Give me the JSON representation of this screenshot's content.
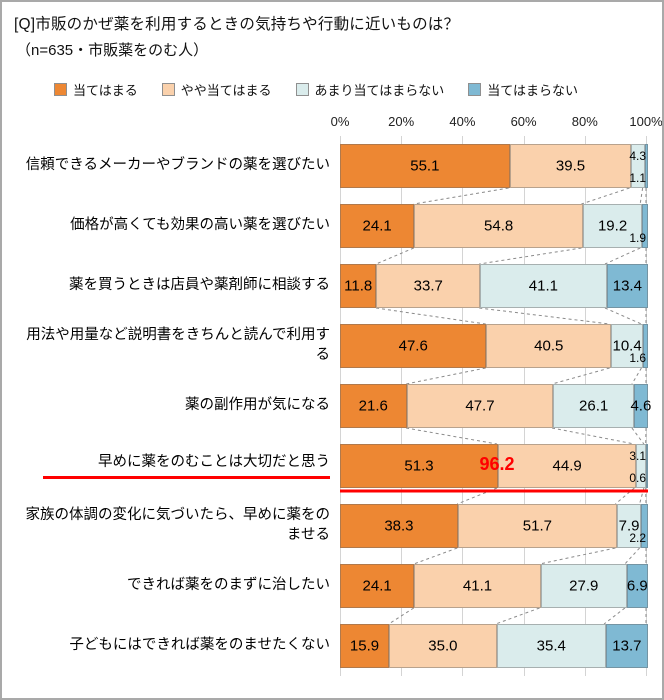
{
  "header": {
    "title": "[Q]市販のかぜ薬を利用するときの気持ちや行動に近いものは？",
    "subtitle": "（n=635・市販薬をのむ人）"
  },
  "chart_data": {
    "type": "bar",
    "stacked": true,
    "orientation": "horizontal",
    "unit": "%",
    "legend_position": "top",
    "x_axis": {
      "ticks": [
        "0%",
        "20%",
        "40%",
        "60%",
        "80%",
        "100%"
      ],
      "min": 0,
      "max": 100,
      "grid": true
    },
    "series": [
      {
        "name": "当てはまる",
        "color": "#ED8733"
      },
      {
        "name": "やや当てはまる",
        "color": "#FAD1AC"
      },
      {
        "name": "あまり当てはまらない",
        "color": "#DAECEC"
      },
      {
        "name": "当てはまらない",
        "color": "#7FB9D3"
      }
    ],
    "rows": [
      {
        "label": "信頼できるメーカーやブランドの薬を選びたい",
        "values": [
          55.1,
          39.5,
          4.3,
          1.1
        ]
      },
      {
        "label": "価格が高くても効果の高い薬を選びたい",
        "values": [
          24.1,
          54.8,
          19.2,
          1.9
        ]
      },
      {
        "label": "薬を買うときは店員や薬剤師に相談する",
        "values": [
          11.8,
          33.7,
          41.1,
          13.4
        ]
      },
      {
        "label": "用法や用量など説明書をきちんと読んで利用する",
        "values": [
          47.6,
          40.5,
          10.4,
          1.6
        ]
      },
      {
        "label": "薬の副作用が気になる",
        "values": [
          21.6,
          47.7,
          26.1,
          4.6
        ]
      },
      {
        "label": "早めに薬をのむことは大切だと思う",
        "values": [
          51.3,
          44.9,
          3.1,
          0.6
        ]
      },
      {
        "label": "家族の体調の変化に気づいたら、早めに薬をのませる",
        "values": [
          38.3,
          51.7,
          7.9,
          2.2
        ]
      },
      {
        "label": "できれば薬をのまずに治したい",
        "values": [
          24.1,
          41.1,
          27.9,
          6.9
        ]
      },
      {
        "label": "子どもにはできれば薬をのませたくない",
        "values": [
          15.9,
          35.0,
          35.4,
          13.7
        ]
      }
    ],
    "highlight": {
      "row_index": 5,
      "total_label": "96.2",
      "color": "#FF0000"
    }
  }
}
